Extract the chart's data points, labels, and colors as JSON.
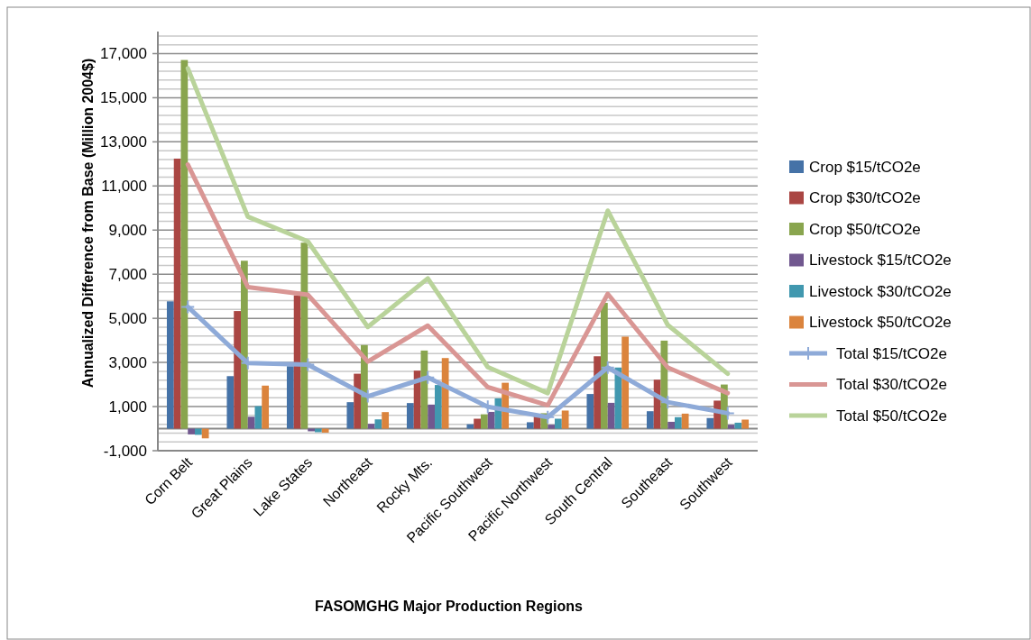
{
  "chart_data": {
    "type": "bar",
    "xlabel": "FASOMGHG Major Production Regions",
    "ylabel": "Annualized Difference from Base (Million 2004$)",
    "categories": [
      "Corn Belt",
      "Great Plains",
      "Lake States",
      "Northeast",
      "Rocky Mts.",
      "Pacific Southwest",
      "Pacific Northwest",
      "South Central",
      "Southeast",
      "Southwest"
    ],
    "series": [
      {
        "name": "Crop $15/tCO2e",
        "color": "#4572a7",
        "values": [
          5770,
          2380,
          2830,
          1200,
          1160,
          200,
          290,
          1570,
          790,
          480
        ]
      },
      {
        "name": "Crop $30/tCO2e",
        "color": "#aa4643",
        "values": [
          12240,
          5330,
          6040,
          2490,
          2630,
          450,
          580,
          3280,
          2220,
          1270
        ]
      },
      {
        "name": "Crop $50/tCO2e",
        "color": "#89a54e",
        "values": [
          16710,
          7610,
          8430,
          3790,
          3540,
          650,
          700,
          5700,
          3990,
          2000
        ]
      },
      {
        "name": "Livestock $15/tCO2e",
        "color": "#71588f",
        "values": [
          -260,
          540,
          -120,
          220,
          1090,
          760,
          180,
          1170,
          310,
          180
        ]
      },
      {
        "name": "Livestock $30/tCO2e",
        "color": "#4198af",
        "values": [
          -280,
          1020,
          -160,
          420,
          1980,
          1370,
          450,
          2770,
          520,
          270
        ]
      },
      {
        "name": "Livestock $50/tCO2e",
        "color": "#db843d",
        "values": [
          -440,
          1950,
          -180,
          750,
          3200,
          2080,
          820,
          4170,
          680,
          410
        ]
      },
      {
        "name": "Total $15/tCO2e",
        "type": "line",
        "color": "#8eaad8",
        "marker": "cross",
        "values": [
          5520,
          2970,
          2900,
          1470,
          2320,
          990,
          520,
          2770,
          1200,
          700
        ]
      },
      {
        "name": "Total $30/tCO2e",
        "type": "line",
        "color": "#d99694",
        "values": [
          11970,
          6420,
          6070,
          3040,
          4670,
          1880,
          1060,
          6110,
          2770,
          1610
        ]
      },
      {
        "name": "Total $50/tCO2e",
        "type": "line",
        "color": "#b9d39a",
        "values": [
          16330,
          9610,
          8490,
          4610,
          6810,
          2790,
          1610,
          9880,
          4700,
          2490
        ]
      }
    ],
    "ylim": [
      -1000,
      18000
    ],
    "yticks": [
      {
        "value": -1000,
        "label": "-1,000"
      },
      {
        "value": -600,
        "label": null
      },
      {
        "value": -200,
        "label": null
      },
      {
        "value": 200,
        "label": null
      },
      {
        "value": 600,
        "label": null
      },
      {
        "value": 1000,
        "label": "1,000"
      },
      {
        "value": 1400,
        "label": null
      },
      {
        "value": 1800,
        "label": null
      },
      {
        "value": 2200,
        "label": null
      },
      {
        "value": 2600,
        "label": null
      },
      {
        "value": 3000,
        "label": "3,000"
      },
      {
        "value": 3400,
        "label": null
      },
      {
        "value": 3800,
        "label": null
      },
      {
        "value": 4200,
        "label": null
      },
      {
        "value": 4600,
        "label": null
      },
      {
        "value": 5000,
        "label": "5,000"
      },
      {
        "value": 5400,
        "label": null
      },
      {
        "value": 5800,
        "label": null
      },
      {
        "value": 6200,
        "label": null
      },
      {
        "value": 6600,
        "label": null
      },
      {
        "value": 7000,
        "label": "7,000"
      },
      {
        "value": 7400,
        "label": null
      },
      {
        "value": 7800,
        "label": null
      },
      {
        "value": 8200,
        "label": null
      },
      {
        "value": 8600,
        "label": null
      },
      {
        "value": 9000,
        "label": "9,000"
      },
      {
        "value": 9400,
        "label": null
      },
      {
        "value": 9800,
        "label": null
      },
      {
        "value": 10200,
        "label": null
      },
      {
        "value": 10600,
        "label": null
      },
      {
        "value": 11000,
        "label": "11,000"
      },
      {
        "value": 11400,
        "label": null
      },
      {
        "value": 11800,
        "label": null
      },
      {
        "value": 12200,
        "label": null
      },
      {
        "value": 12600,
        "label": null
      },
      {
        "value": 13000,
        "label": "13,000"
      },
      {
        "value": 13400,
        "label": null
      },
      {
        "value": 13800,
        "label": null
      },
      {
        "value": 14200,
        "label": null
      },
      {
        "value": 14600,
        "label": null
      },
      {
        "value": 15000,
        "label": "15,000"
      },
      {
        "value": 15400,
        "label": null
      },
      {
        "value": 15800,
        "label": null
      },
      {
        "value": 16200,
        "label": null
      },
      {
        "value": 16600,
        "label": null
      },
      {
        "value": 17000,
        "label": "17,000"
      },
      {
        "value": 17400,
        "label": null
      },
      {
        "value": 17800,
        "label": null
      }
    ],
    "grid": "y",
    "legend": "right"
  }
}
